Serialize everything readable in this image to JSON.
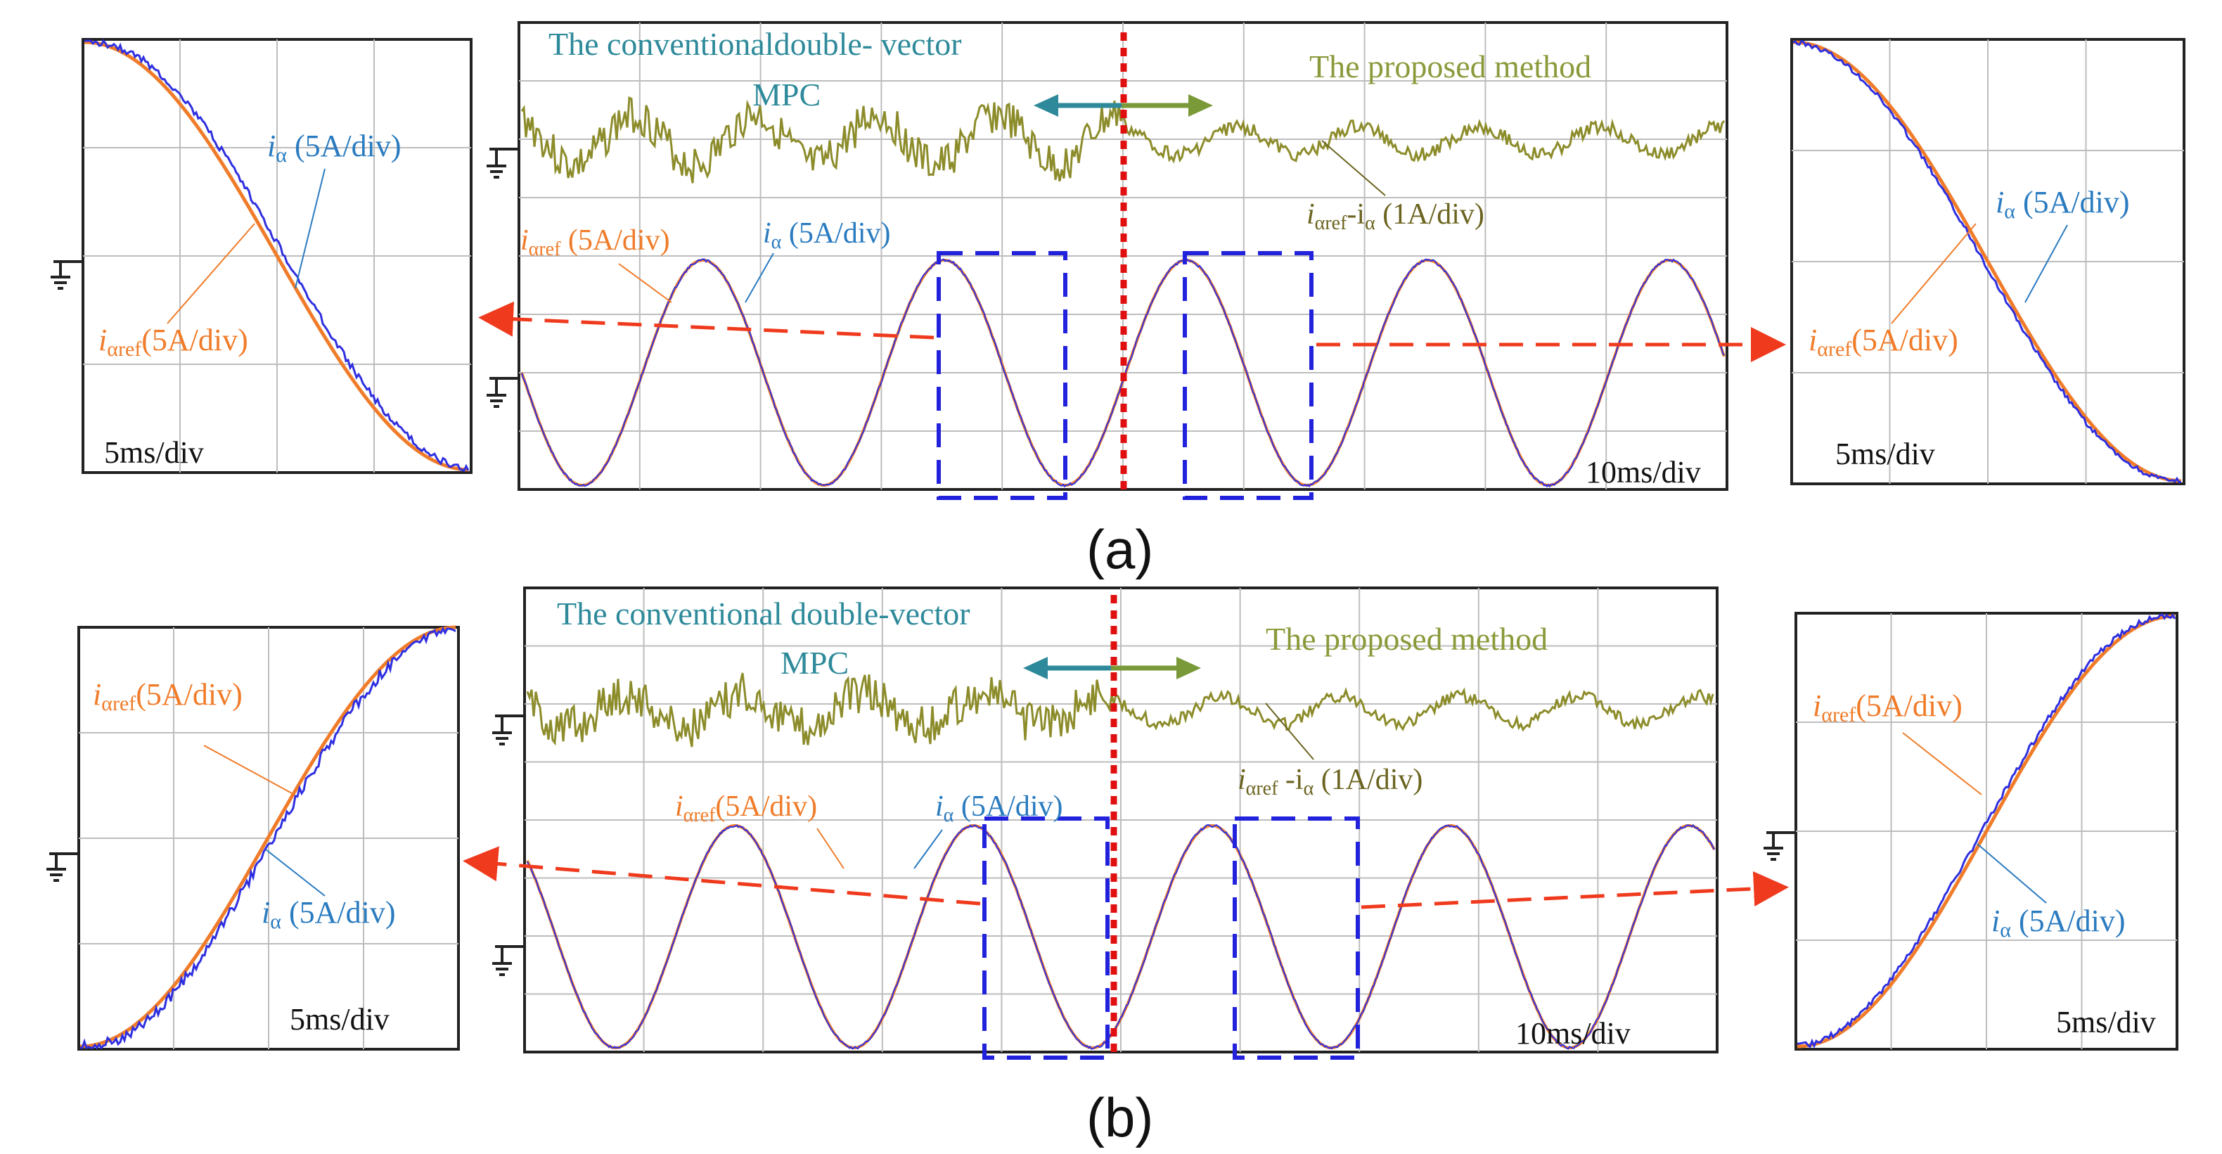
{
  "colors": {
    "iref": "#F07C2A",
    "ialpha": "#2F2FE0",
    "error": "#8C8C2B",
    "error_label": "#6B6420",
    "label_blue": "#2A7BC0",
    "conventional_text": "#2E8A9A",
    "proposed_text": "#8A9A3A",
    "arrow_teal": "#2E8A9A",
    "arrow_green": "#7A9A3A",
    "red_dash": "#F03A1E",
    "box_blue": "#2222DD",
    "divider_red": "#E01010",
    "grid": "#BDBDBD"
  },
  "captions": {
    "a": "(a)",
    "b": "(b)"
  },
  "panels": {
    "a": {
      "main": {
        "title_conventional_line1": "The conventionaldouble- vector",
        "title_conventional_line2": "MPC",
        "title_proposed": "The proposed method",
        "error_label_sub": "αref",
        "error_label_mid": "-i",
        "error_label_sub2": "α",
        "error_label_unit": " (1A/div)",
        "iref_label_sub": "αref",
        "iref_label_unit": " (5A/div)",
        "ia_label_sub": "α",
        "ia_label_unit": " (5A/div)",
        "timescale": "10ms/div"
      },
      "zoom_left": {
        "ia_sub": "α",
        "ia_unit": " (5A/div)",
        "iref_sub": "αref",
        "iref_unit": "(5A/div)",
        "timescale": "5ms/div"
      },
      "zoom_right": {
        "ia_sub": "α",
        "ia_unit": " (5A/div)",
        "iref_sub": "αref",
        "iref_unit": "(5A/div)",
        "timescale": "5ms/div"
      }
    },
    "b": {
      "main": {
        "title_conventional_line1": "The conventional double-vector",
        "title_conventional_line2": "MPC",
        "title_proposed": "The proposed method",
        "error_label_sub": "αref",
        "error_label_mid": " -i",
        "error_label_sub2": "α",
        "error_label_unit": " (1A/div)",
        "iref_label_sub": "αref",
        "iref_label_unit": "(5A/div)",
        "ia_label_sub": "α",
        "ia_label_unit": " (5A/div)",
        "timescale": "10ms/div"
      },
      "zoom_left": {
        "ia_sub": "α",
        "ia_unit": " (5A/div)",
        "iref_sub": "αref",
        "iref_unit": "(5A/div)",
        "timescale": "5ms/div"
      },
      "zoom_right": {
        "ia_sub": "α",
        "ia_unit": " (5A/div)",
        "iref_sub": "αref",
        "iref_unit": "(5A/div)",
        "timescale": "5ms/div"
      }
    }
  },
  "chart_data": [
    {
      "type": "line",
      "panel": "a-main",
      "x_unit": "ms",
      "x_range": [
        0,
        100
      ],
      "y_unit": "A",
      "y_range": [
        -10,
        10
      ],
      "grid": true,
      "series": [
        {
          "name": "iαref",
          "waveform": "sinusoid",
          "period_ms": 20,
          "amplitude": 5
        },
        {
          "name": "iα",
          "waveform": "sinusoid",
          "period_ms": 20,
          "amplitude": 5
        },
        {
          "name": "iαref-iα",
          "scale": "1A/div",
          "conventional_ripple": 0.9,
          "proposed_ripple": 0.5
        }
      ],
      "method_switch_ms": 49
    },
    {
      "type": "line",
      "panel": "b-main",
      "x_unit": "ms",
      "x_range": [
        0,
        100
      ],
      "y_unit": "A",
      "y_range": [
        -10,
        10
      ],
      "grid": true,
      "series": [
        {
          "name": "iαref",
          "waveform": "sinusoid",
          "period_ms": 20,
          "amplitude": 5
        },
        {
          "name": "iα",
          "waveform": "sinusoid",
          "period_ms": 20,
          "amplitude": 5
        },
        {
          "name": "iαref-iα",
          "scale": "1A/div",
          "conventional_ripple": 0.8,
          "proposed_ripple": 0.4
        }
      ],
      "method_switch_ms": 49
    }
  ]
}
